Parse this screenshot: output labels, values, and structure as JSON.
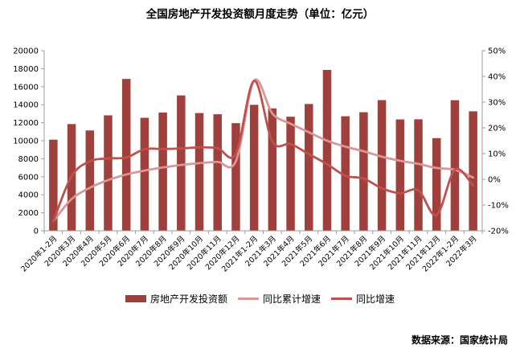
{
  "title": "全国房地产开发投资额月度走势（单位：亿元）",
  "source": "数据来源：国家统计局",
  "colors": {
    "bar": "#A0403D",
    "line_cumulative": "#D99694",
    "line_monthly": "#C0504D",
    "axis": "#9e9e9e",
    "text": "#000000"
  },
  "chart_data": {
    "type": "bar",
    "title": "全国房地产开发投资额月度走势（单位：亿元）",
    "grid": false,
    "legend_position": "bottom",
    "categories": [
      "2020年1-2月",
      "2020年3月",
      "2020年4月",
      "2020年5月",
      "2020年6月",
      "2020年7月",
      "2020年8月",
      "2020年9月",
      "2020年10月",
      "2020年11月",
      "2020年12月",
      "2021年1-2月",
      "2021年3月",
      "2021年4月",
      "2021年5月",
      "2021年6月",
      "2021年7月",
      "2021年8月",
      "2021年9月",
      "2021年10月",
      "2021年11月",
      "2021年12月",
      "2022年1-2月",
      "2022年3月"
    ],
    "bar_series": {
      "name": "房地产开发投资额",
      "axis": "left",
      "color": "#A0403D",
      "values": [
        10115,
        11848,
        11140,
        12817,
        16860,
        12545,
        13129,
        15030,
        13072,
        12936,
        11951,
        13986,
        13590,
        12664,
        14078,
        17861,
        12716,
        13165,
        14508,
        12366,
        12380,
        10288,
        14499,
        13266
      ]
    },
    "line_series": [
      {
        "name": "同比累计增速",
        "axis": "right",
        "color": "#D99694",
        "smooth": true,
        "values": [
          -16.3,
          -7.7,
          -3.3,
          -0.3,
          1.9,
          3.4,
          4.6,
          5.6,
          6.3,
          6.8,
          7.0,
          38.3,
          25.6,
          21.6,
          18.3,
          15.0,
          12.7,
          10.9,
          8.8,
          7.2,
          6.0,
          4.4,
          3.7,
          0.7
        ]
      },
      {
        "name": "同比增速",
        "axis": "right",
        "color": "#C0504D",
        "smooth": true,
        "values": [
          -16.3,
          1.2,
          7.0,
          8.1,
          8.5,
          11.7,
          11.8,
          12.0,
          12.4,
          12.1,
          9.9,
          38.3,
          14.7,
          13.7,
          9.8,
          5.9,
          1.4,
          0.3,
          -3.5,
          -5.4,
          -4.3,
          -13.9,
          3.7,
          -2.4
        ]
      }
    ],
    "left_axis": {
      "min": 0,
      "max": 20000,
      "step": 2000
    },
    "right_axis": {
      "min": -20,
      "max": 50,
      "step": 10,
      "suffix": "%"
    }
  }
}
